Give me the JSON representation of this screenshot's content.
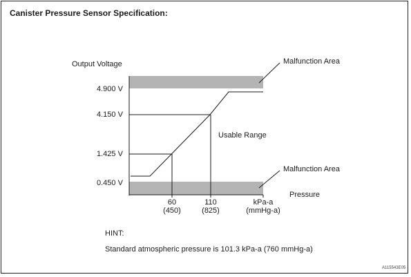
{
  "title": "Canister Pressure Sensor Specification:",
  "y_axis_label": "Output Voltage",
  "x_axis_label": "Pressure",
  "voltage_ticks": [
    "4.900 V",
    "4.150 V",
    "1.425 V",
    "0.450 V"
  ],
  "pressure_ticks": [
    {
      "kpa": "60",
      "mmhg": "(450)"
    },
    {
      "kpa": "110",
      "mmhg": "(825)"
    },
    {
      "kpa": "kPa-a",
      "mmhg": "(mmHg-a)"
    }
  ],
  "annotations": {
    "malfunction_upper": "Malfunction Area",
    "malfunction_lower": "Malfunction Area",
    "usable_range": "Usable Range"
  },
  "hint": {
    "label": "HINT:",
    "text": "Standard atmospheric pressure is 101.3 kPa-a (760 mmHg-a)"
  },
  "reference_code": "A115543E05",
  "colors": {
    "malfunction_band": "#b4b4b4",
    "line": "#1a1a1a"
  }
}
